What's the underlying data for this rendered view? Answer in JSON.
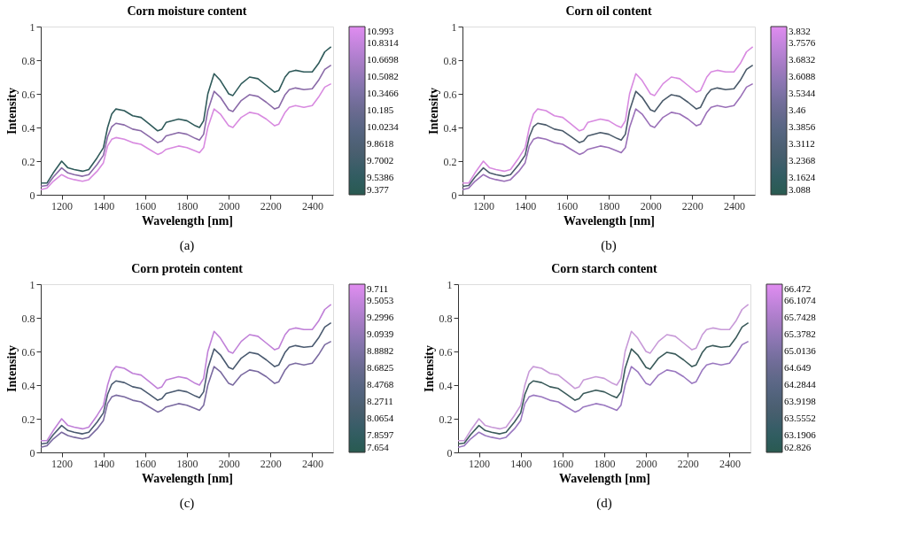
{
  "chart_data": [
    {
      "type": "line",
      "title": "Corn moisture content",
      "xlabel": "Wavelength [nm]",
      "ylabel": "Intensity",
      "annotations": [
        "(a)"
      ],
      "x": [
        1100,
        1130,
        1160,
        1200,
        1230,
        1260,
        1300,
        1330,
        1370,
        1400,
        1420,
        1440,
        1460,
        1500,
        1540,
        1580,
        1620,
        1660,
        1680,
        1700,
        1760,
        1800,
        1840,
        1860,
        1880,
        1900,
        1930,
        1960,
        2000,
        2020,
        2060,
        2100,
        2140,
        2180,
        2220,
        2240,
        2270,
        2290,
        2320,
        2360,
        2400,
        2430,
        2460,
        2490
      ],
      "series": [
        {
          "color": "#2f5a5a",
          "values": [
            0.07,
            0.07,
            0.13,
            0.2,
            0.16,
            0.15,
            0.14,
            0.15,
            0.22,
            0.28,
            0.4,
            0.48,
            0.51,
            0.5,
            0.47,
            0.46,
            0.42,
            0.38,
            0.39,
            0.43,
            0.45,
            0.44,
            0.41,
            0.4,
            0.44,
            0.6,
            0.72,
            0.68,
            0.6,
            0.59,
            0.66,
            0.7,
            0.69,
            0.65,
            0.61,
            0.62,
            0.7,
            0.73,
            0.74,
            0.73,
            0.73,
            0.78,
            0.85,
            0.88
          ]
        },
        {
          "color": "#8a6aa8",
          "values": [
            0.05,
            0.055,
            0.105,
            0.16,
            0.13,
            0.12,
            0.11,
            0.12,
            0.18,
            0.235,
            0.345,
            0.405,
            0.425,
            0.415,
            0.39,
            0.38,
            0.345,
            0.31,
            0.32,
            0.35,
            0.37,
            0.36,
            0.335,
            0.325,
            0.36,
            0.5,
            0.615,
            0.58,
            0.505,
            0.495,
            0.56,
            0.595,
            0.585,
            0.55,
            0.51,
            0.52,
            0.595,
            0.625,
            0.635,
            0.625,
            0.63,
            0.68,
            0.745,
            0.77
          ]
        },
        {
          "color": "#d88ae0",
          "values": [
            0.03,
            0.04,
            0.08,
            0.12,
            0.1,
            0.09,
            0.08,
            0.09,
            0.14,
            0.19,
            0.29,
            0.33,
            0.34,
            0.33,
            0.31,
            0.3,
            0.27,
            0.24,
            0.25,
            0.27,
            0.29,
            0.28,
            0.26,
            0.25,
            0.28,
            0.4,
            0.51,
            0.48,
            0.41,
            0.4,
            0.46,
            0.49,
            0.48,
            0.45,
            0.41,
            0.42,
            0.49,
            0.52,
            0.53,
            0.52,
            0.53,
            0.58,
            0.64,
            0.66
          ]
        }
      ],
      "xlim": [
        1100,
        2500
      ],
      "xticks": [
        1200,
        1400,
        1600,
        1800,
        2000,
        2200,
        2400
      ],
      "ylim": [
        0,
        1
      ],
      "yticks": [
        0,
        0.2,
        0.4,
        0.6,
        0.8,
        1
      ],
      "clim": [
        9.377,
        10.993
      ],
      "cticks": [
        9.377,
        9.5386,
        9.7002,
        9.8618,
        10.0234,
        10.185,
        10.3466,
        10.5082,
        10.6698,
        10.8314,
        10.993
      ]
    },
    {
      "type": "line",
      "title": "Corn oil content",
      "xlabel": "Wavelength [nm]",
      "ylabel": "Intensity",
      "annotations": [
        "(b)"
      ],
      "x": [
        1100,
        1130,
        1160,
        1200,
        1230,
        1260,
        1300,
        1330,
        1370,
        1400,
        1420,
        1440,
        1460,
        1500,
        1540,
        1580,
        1620,
        1660,
        1680,
        1700,
        1760,
        1800,
        1840,
        1860,
        1880,
        1900,
        1930,
        1960,
        2000,
        2020,
        2060,
        2100,
        2140,
        2180,
        2220,
        2240,
        2270,
        2290,
        2320,
        2360,
        2400,
        2430,
        2460,
        2490
      ],
      "series": [
        {
          "color": "#d88ae0",
          "values": [
            0.07,
            0.07,
            0.13,
            0.2,
            0.16,
            0.15,
            0.14,
            0.15,
            0.22,
            0.28,
            0.4,
            0.48,
            0.51,
            0.5,
            0.47,
            0.46,
            0.42,
            0.38,
            0.39,
            0.43,
            0.45,
            0.44,
            0.41,
            0.4,
            0.44,
            0.6,
            0.72,
            0.68,
            0.6,
            0.59,
            0.66,
            0.7,
            0.69,
            0.65,
            0.61,
            0.62,
            0.7,
            0.73,
            0.74,
            0.73,
            0.73,
            0.78,
            0.85,
            0.88
          ]
        },
        {
          "color": "#4a5a6a",
          "values": [
            0.05,
            0.055,
            0.105,
            0.16,
            0.13,
            0.12,
            0.11,
            0.12,
            0.18,
            0.235,
            0.345,
            0.405,
            0.425,
            0.415,
            0.39,
            0.38,
            0.345,
            0.31,
            0.32,
            0.35,
            0.37,
            0.36,
            0.335,
            0.325,
            0.36,
            0.5,
            0.615,
            0.58,
            0.505,
            0.495,
            0.56,
            0.595,
            0.585,
            0.55,
            0.51,
            0.52,
            0.595,
            0.625,
            0.635,
            0.625,
            0.63,
            0.68,
            0.745,
            0.77
          ]
        },
        {
          "color": "#9a70b8",
          "values": [
            0.03,
            0.04,
            0.08,
            0.12,
            0.1,
            0.09,
            0.08,
            0.09,
            0.14,
            0.19,
            0.29,
            0.33,
            0.34,
            0.33,
            0.31,
            0.3,
            0.27,
            0.24,
            0.25,
            0.27,
            0.29,
            0.28,
            0.26,
            0.25,
            0.28,
            0.4,
            0.51,
            0.48,
            0.41,
            0.4,
            0.46,
            0.49,
            0.48,
            0.45,
            0.41,
            0.42,
            0.49,
            0.52,
            0.53,
            0.52,
            0.53,
            0.58,
            0.64,
            0.66
          ]
        }
      ],
      "xlim": [
        1100,
        2500
      ],
      "xticks": [
        1200,
        1400,
        1600,
        1800,
        2000,
        2200,
        2400
      ],
      "ylim": [
        0,
        1
      ],
      "yticks": [
        0,
        0.2,
        0.4,
        0.6,
        0.8,
        1
      ],
      "clim": [
        3.088,
        3.832
      ],
      "cticks": [
        3.088,
        3.1624,
        3.2368,
        3.3112,
        3.3856,
        3.46,
        3.5344,
        3.6088,
        3.6832,
        3.7576,
        3.832
      ]
    },
    {
      "type": "line",
      "title": "Corn protein content",
      "xlabel": "Wavelength [nm]",
      "ylabel": "Intensity",
      "annotations": [
        "(c)"
      ],
      "x": [
        1100,
        1130,
        1160,
        1200,
        1230,
        1260,
        1300,
        1330,
        1370,
        1400,
        1420,
        1440,
        1460,
        1500,
        1540,
        1580,
        1620,
        1660,
        1680,
        1700,
        1760,
        1800,
        1840,
        1860,
        1880,
        1900,
        1930,
        1960,
        2000,
        2020,
        2060,
        2100,
        2140,
        2180,
        2220,
        2240,
        2270,
        2290,
        2320,
        2360,
        2400,
        2430,
        2460,
        2490
      ],
      "series": [
        {
          "color": "#c080d8",
          "values": [
            0.07,
            0.07,
            0.13,
            0.2,
            0.16,
            0.15,
            0.14,
            0.15,
            0.22,
            0.28,
            0.4,
            0.48,
            0.51,
            0.5,
            0.47,
            0.46,
            0.42,
            0.38,
            0.39,
            0.43,
            0.45,
            0.44,
            0.41,
            0.4,
            0.44,
            0.6,
            0.72,
            0.68,
            0.6,
            0.59,
            0.66,
            0.7,
            0.69,
            0.65,
            0.61,
            0.62,
            0.7,
            0.73,
            0.74,
            0.73,
            0.73,
            0.78,
            0.85,
            0.88
          ]
        },
        {
          "color": "#4a5a70",
          "values": [
            0.05,
            0.055,
            0.105,
            0.16,
            0.13,
            0.12,
            0.11,
            0.12,
            0.18,
            0.235,
            0.345,
            0.405,
            0.425,
            0.415,
            0.39,
            0.38,
            0.345,
            0.31,
            0.32,
            0.35,
            0.37,
            0.36,
            0.335,
            0.325,
            0.36,
            0.5,
            0.615,
            0.58,
            0.505,
            0.495,
            0.56,
            0.595,
            0.585,
            0.55,
            0.51,
            0.52,
            0.595,
            0.625,
            0.635,
            0.625,
            0.63,
            0.68,
            0.745,
            0.77
          ]
        },
        {
          "color": "#7a6aa0",
          "values": [
            0.03,
            0.04,
            0.08,
            0.12,
            0.1,
            0.09,
            0.08,
            0.09,
            0.14,
            0.19,
            0.29,
            0.33,
            0.34,
            0.33,
            0.31,
            0.3,
            0.27,
            0.24,
            0.25,
            0.27,
            0.29,
            0.28,
            0.26,
            0.25,
            0.28,
            0.4,
            0.51,
            0.48,
            0.41,
            0.4,
            0.46,
            0.49,
            0.48,
            0.45,
            0.41,
            0.42,
            0.49,
            0.52,
            0.53,
            0.52,
            0.53,
            0.58,
            0.64,
            0.66
          ]
        }
      ],
      "xlim": [
        1100,
        2500
      ],
      "xticks": [
        1200,
        1400,
        1600,
        1800,
        2000,
        2200,
        2400
      ],
      "ylim": [
        0,
        1
      ],
      "yticks": [
        0,
        0.2,
        0.4,
        0.6,
        0.8,
        1
      ],
      "clim": [
        7.654,
        9.711
      ],
      "cticks": [
        7.654,
        7.8597,
        8.0654,
        8.2711,
        8.4768,
        8.6825,
        8.8882,
        9.0939,
        9.2996,
        9.5053,
        9.711
      ]
    },
    {
      "type": "line",
      "title": "Corn starch content",
      "xlabel": "Wavelength [nm]",
      "ylabel": "Intensity",
      "annotations": [
        "(d)"
      ],
      "x": [
        1100,
        1130,
        1160,
        1200,
        1230,
        1260,
        1300,
        1330,
        1370,
        1400,
        1420,
        1440,
        1460,
        1500,
        1540,
        1580,
        1620,
        1660,
        1680,
        1700,
        1760,
        1800,
        1840,
        1860,
        1880,
        1900,
        1930,
        1960,
        2000,
        2020,
        2060,
        2100,
        2140,
        2180,
        2220,
        2240,
        2270,
        2290,
        2320,
        2360,
        2400,
        2430,
        2460,
        2490
      ],
      "series": [
        {
          "color": "#c89ad8",
          "values": [
            0.07,
            0.07,
            0.13,
            0.2,
            0.16,
            0.15,
            0.14,
            0.15,
            0.22,
            0.28,
            0.4,
            0.48,
            0.51,
            0.5,
            0.47,
            0.46,
            0.42,
            0.38,
            0.39,
            0.43,
            0.45,
            0.44,
            0.41,
            0.4,
            0.44,
            0.6,
            0.72,
            0.68,
            0.6,
            0.59,
            0.66,
            0.7,
            0.69,
            0.65,
            0.61,
            0.62,
            0.7,
            0.73,
            0.74,
            0.73,
            0.73,
            0.78,
            0.85,
            0.88
          ]
        },
        {
          "color": "#3a5a5a",
          "values": [
            0.05,
            0.055,
            0.105,
            0.16,
            0.13,
            0.12,
            0.11,
            0.12,
            0.18,
            0.235,
            0.345,
            0.405,
            0.425,
            0.415,
            0.39,
            0.38,
            0.345,
            0.31,
            0.32,
            0.35,
            0.37,
            0.36,
            0.335,
            0.325,
            0.36,
            0.5,
            0.615,
            0.58,
            0.505,
            0.495,
            0.56,
            0.595,
            0.585,
            0.55,
            0.51,
            0.52,
            0.595,
            0.625,
            0.635,
            0.625,
            0.63,
            0.68,
            0.745,
            0.77
          ]
        },
        {
          "color": "#9a78c0",
          "values": [
            0.03,
            0.04,
            0.08,
            0.12,
            0.1,
            0.09,
            0.08,
            0.09,
            0.14,
            0.19,
            0.29,
            0.33,
            0.34,
            0.33,
            0.31,
            0.3,
            0.27,
            0.24,
            0.25,
            0.27,
            0.29,
            0.28,
            0.26,
            0.25,
            0.28,
            0.4,
            0.51,
            0.48,
            0.41,
            0.4,
            0.46,
            0.49,
            0.48,
            0.45,
            0.41,
            0.42,
            0.49,
            0.52,
            0.53,
            0.52,
            0.53,
            0.58,
            0.64,
            0.66
          ]
        }
      ],
      "xlim": [
        1100,
        2500
      ],
      "xticks": [
        1200,
        1400,
        1600,
        1800,
        2000,
        2200,
        2400
      ],
      "ylim": [
        0,
        1
      ],
      "yticks": [
        0,
        0.2,
        0.4,
        0.6,
        0.8,
        1
      ],
      "clim": [
        62.826,
        66.472
      ],
      "cticks": [
        62.826,
        63.1906,
        63.5552,
        63.9198,
        64.2844,
        64.649,
        65.0136,
        65.3782,
        65.7428,
        66.1074,
        66.472
      ]
    }
  ]
}
